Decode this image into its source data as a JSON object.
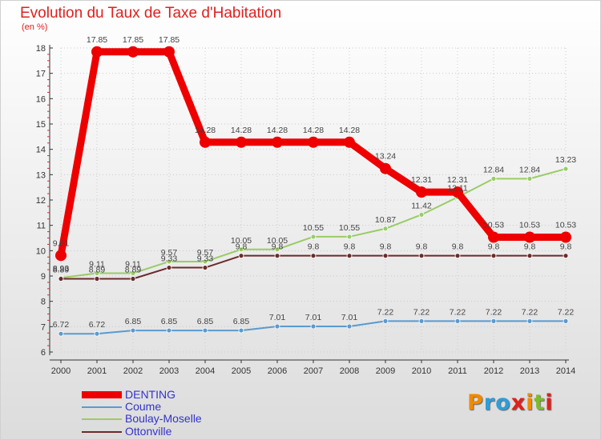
{
  "title": "Evolution du Taux de Taxe d'Habitation",
  "subtitle": "(en %)",
  "logo_text": "Proxiti",
  "colors": {
    "title": "#e02020",
    "legend_text": "#3333cc",
    "grid": "#cccccc",
    "axis": "#333333",
    "logo": [
      "#f08a00",
      "#2d9ed8",
      "#2d9ed8",
      "#e0201c",
      "#f08a00",
      "#7dbb2c",
      "#e0201c"
    ]
  },
  "chart_data": {
    "type": "line",
    "x": [
      "2000",
      "2001",
      "2002",
      "2003",
      "2004",
      "2005",
      "2006",
      "2007",
      "2008",
      "2009",
      "2010",
      "2011",
      "2012",
      "2013",
      "2014"
    ],
    "ylim": [
      6,
      18
    ],
    "yticks": [
      "6",
      "7",
      "8",
      "9",
      "10",
      "11",
      "12",
      "13",
      "14",
      "15",
      "16",
      "17",
      "18"
    ],
    "grid": true,
    "legend_position": "bottom-left",
    "series": [
      {
        "name": "DENTING",
        "color": "#ee0000",
        "values": [
          9.81,
          17.85,
          17.85,
          17.85,
          14.28,
          14.28,
          14.28,
          14.28,
          14.28,
          13.24,
          12.31,
          12.31,
          10.53,
          10.53,
          10.53
        ],
        "labels": [
          "9.81",
          "17.85",
          "17.85",
          "17.85",
          "14.28",
          "14.28",
          "14.28",
          "14.28",
          "14.28",
          "13.24",
          "12.31",
          "12.31",
          "10.53",
          "10.53",
          "10.53"
        ]
      },
      {
        "name": "Coume",
        "color": "#5a9ad0",
        "values": [
          6.72,
          6.72,
          6.85,
          6.85,
          6.85,
          6.85,
          7.01,
          7.01,
          7.01,
          7.22,
          7.22,
          7.22,
          7.22,
          7.22,
          7.22
        ],
        "labels": [
          "6.72",
          "6.72",
          "6.85",
          "6.85",
          "6.85",
          "6.85",
          "7.01",
          "7.01",
          "7.01",
          "7.22",
          "7.22",
          "7.22",
          "7.22",
          "7.22",
          "7.22"
        ]
      },
      {
        "name": "Boulay-Moselle",
        "color": "#99cc66",
        "values": [
          8.93,
          9.11,
          9.11,
          9.57,
          9.57,
          10.05,
          10.05,
          10.55,
          10.55,
          10.87,
          11.42,
          12.11,
          12.84,
          12.84,
          13.23
        ],
        "labels": [
          "8.93",
          "9.11",
          "9.11",
          "9.57",
          "9.57",
          "10.05",
          "10.05",
          "10.55",
          "10.55",
          "10.87",
          "11.42",
          "12.11",
          "12.84",
          "12.84",
          "13.23"
        ]
      },
      {
        "name": "Ottonville",
        "color": "#6b2b2b",
        "values": [
          8.89,
          8.89,
          8.89,
          9.33,
          9.33,
          9.8,
          9.8,
          9.8,
          9.8,
          9.8,
          9.8,
          9.8,
          9.8,
          9.8,
          9.8
        ],
        "labels": [
          "8.89",
          "8.89",
          "8.89",
          "9.33",
          "9.33",
          "9.8",
          "9.8",
          "9.8",
          "9.8",
          "9.8",
          "9.8",
          "9.8",
          "9.8",
          "9.8",
          "9.8"
        ]
      }
    ]
  }
}
